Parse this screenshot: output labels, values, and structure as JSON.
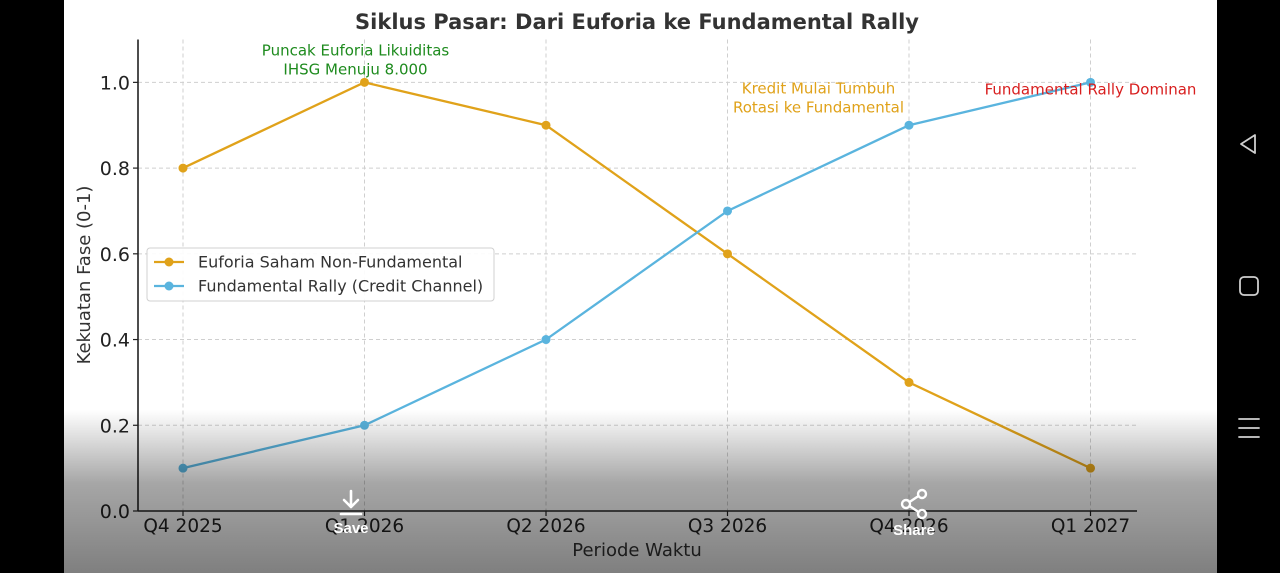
{
  "chart_data": {
    "type": "line",
    "title": "Siklus Pasar: Dari Euforia ke Fundamental Rally",
    "xlabel": "Periode Waktu",
    "ylabel": "Kekuatan Fase (0-1)",
    "categories": [
      "Q4 2025",
      "Q1 2026",
      "Q2 2026",
      "Q3 2026",
      "Q4 2026",
      "Q1 2027"
    ],
    "ylim": [
      0,
      1.1
    ],
    "yticks": [
      0.0,
      0.2,
      0.4,
      0.6,
      0.8,
      1.0
    ],
    "ytick_labels": [
      "0.0",
      "0.2",
      "0.4",
      "0.6",
      "0.8",
      "1.0"
    ],
    "grid": true,
    "legend_position": "center-left",
    "series": [
      {
        "name": "Euforia Saham Non-Fundamental",
        "values": [
          0.8,
          1.0,
          0.9,
          0.6,
          0.3,
          0.1
        ],
        "color": "#E0A21A"
      },
      {
        "name": "Fundamental Rally (Credit Channel)",
        "values": [
          0.1,
          0.2,
          0.4,
          0.7,
          0.9,
          1.0
        ],
        "color": "#5AB4DE"
      }
    ],
    "annotations": [
      {
        "lines": [
          "Puncak Euforia Likuiditas",
          "IHSG Menuju 8.000"
        ],
        "x": "Q1 2026",
        "y": 1.0,
        "color": "#1E8B1E"
      },
      {
        "lines": [
          "Kredit Mulai Tumbuh",
          "Rotasi ke Fundamental"
        ],
        "x": "Q3 2026",
        "y": 0.85,
        "color": "#E0A21A"
      },
      {
        "lines": [
          "Fundamental Rally Dominan"
        ],
        "x": "Q1 2027",
        "y": 1.0,
        "color": "#D81E1E"
      }
    ]
  },
  "viewer": {
    "save_label": "Save",
    "share_label": "Share",
    "save_icon": "download-icon",
    "share_icon": "share-icon"
  },
  "system_nav": {
    "back_icon": "back-triangle-icon",
    "home_icon": "home-square-icon",
    "menu_icon": "menu-lines-icon"
  }
}
